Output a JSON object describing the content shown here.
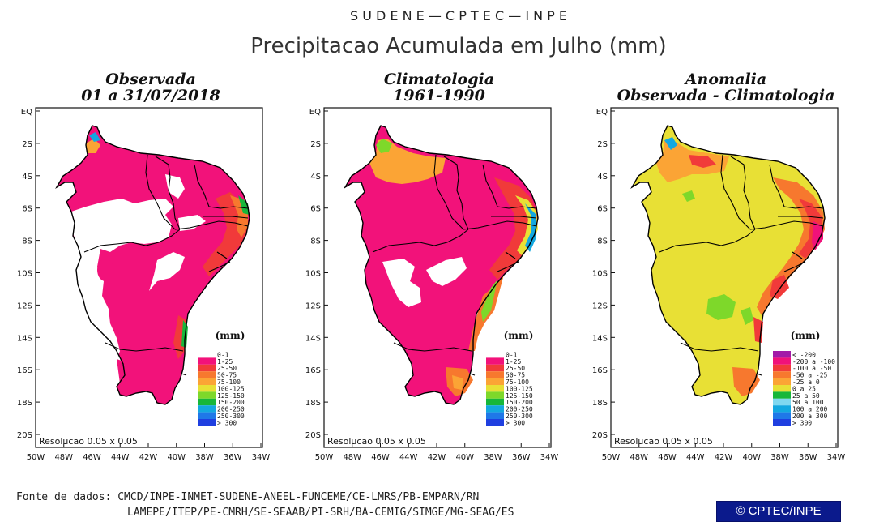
{
  "header": {
    "org": "S U D E N E — C P T E C — I N P E",
    "title": "Precipitacao Acumulada em Julho (mm)"
  },
  "panels": [
    {
      "title_line1": "Observada",
      "title_line2": "01 a 31/07/2018",
      "resolution": "Resolucao 0.05 x 0.05",
      "legend_title": "(mm)",
      "legend": [
        {
          "label": "0-1",
          "color": "#ffffff"
        },
        {
          "label": "1-25",
          "color": "#f2127a"
        },
        {
          "label": "25-50",
          "color": "#f13a3a"
        },
        {
          "label": "50-75",
          "color": "#f7782e"
        },
        {
          "label": "75-100",
          "color": "#fba435"
        },
        {
          "label": "100-125",
          "color": "#e8e035"
        },
        {
          "label": "125-150",
          "color": "#7ed82a"
        },
        {
          "label": "150-200",
          "color": "#17b73a"
        },
        {
          "label": "200-250",
          "color": "#13a8e0"
        },
        {
          "label": "250-300",
          "color": "#1f78e8"
        },
        {
          "label": "> 300",
          "color": "#1f3fe0"
        }
      ]
    },
    {
      "title_line1": "Climatologia",
      "title_line2": "1961-1990",
      "resolution": "Resolucao 0.05 x 0.05",
      "legend_title": "(mm)",
      "legend": [
        {
          "label": "0-1",
          "color": "#ffffff"
        },
        {
          "label": "1-25",
          "color": "#f2127a"
        },
        {
          "label": "25-50",
          "color": "#f13a3a"
        },
        {
          "label": "50-75",
          "color": "#f7782e"
        },
        {
          "label": "75-100",
          "color": "#fba435"
        },
        {
          "label": "100-125",
          "color": "#e8e035"
        },
        {
          "label": "125-150",
          "color": "#7ed82a"
        },
        {
          "label": "150-200",
          "color": "#17b73a"
        },
        {
          "label": "200-250",
          "color": "#13a8e0"
        },
        {
          "label": "250-300",
          "color": "#1f78e8"
        },
        {
          "label": "> 300",
          "color": "#1f3fe0"
        }
      ]
    },
    {
      "title_line1": "Anomalia",
      "title_line2": "Observada - Climatologia",
      "resolution": "Resolucao 0.05 x 0.05",
      "legend_title": "(mm)",
      "legend": [
        {
          "label": "<  -200",
          "color": "#a21aa8"
        },
        {
          "label": "-200 a -100",
          "color": "#f0127a"
        },
        {
          "label": "-100 a -50",
          "color": "#f13a3a"
        },
        {
          "label": "-50 a -25",
          "color": "#f7782e"
        },
        {
          "label": "-25 a 0",
          "color": "#fba435"
        },
        {
          "label": "0 a 25",
          "color": "#e8e035"
        },
        {
          "label": "25 a 50",
          "color": "#17b73a"
        },
        {
          "label": "50 a 100",
          "color": "#7fd8f0"
        },
        {
          "label": "100 a 200",
          "color": "#13a8e0"
        },
        {
          "label": "200 a 300",
          "color": "#1f78e8"
        },
        {
          "label": "> 300",
          "color": "#1f3fe0"
        }
      ]
    }
  ],
  "axes": {
    "y_ticks": [
      "EQ",
      "2S",
      "4S",
      "6S",
      "8S",
      "10S",
      "12S",
      "14S",
      "16S",
      "18S",
      "20S"
    ],
    "x_ticks": [
      "50W",
      "48W",
      "46W",
      "44W",
      "42W",
      "40W",
      "38W",
      "36W",
      "34W"
    ]
  },
  "footer": {
    "line1": "Fonte de dados: CMCD/INPE-INMET-SUDENE-ANEEL-FUNCEME/CE-LMRS/PB-EMPARN/RN",
    "line2": "LAMEPE/ITEP/PE-CMRH/SE-SEAAB/PI-SRH/BA-CEMIG/SIMGE/MG-SEAG/ES",
    "badge": "© CPTEC/INPE"
  },
  "colors": {
    "land_obs": "#f2127a",
    "land_clim": "#f2127a",
    "land_anom": "#e8e035",
    "no_rain": "#ffffff",
    "border": "#000000"
  }
}
